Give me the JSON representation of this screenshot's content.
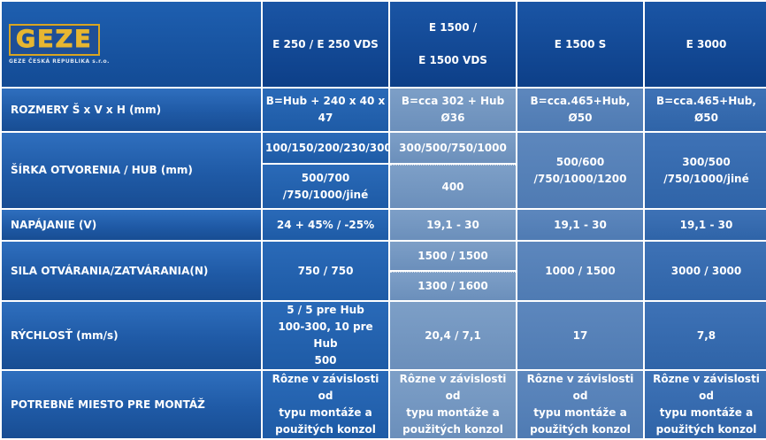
{
  "logo": {
    "brand": "GEZE",
    "subtitle": "GEZE ČESKÁ REPUBLIKA s.r.o."
  },
  "headers": {
    "col1": "E 250 / E 250 VDS",
    "col2_line1": "E 1500 /",
    "col2_line2": "E 1500 VDS",
    "col3": "E 1500 S",
    "col4": "E 3000"
  },
  "rows": {
    "rozmery": {
      "label": "ROZMERY Š x V x H (mm)",
      "c1": "B=Hub + 240 x 40 x 47",
      "c2": "B=cca 302 + Hub Ø36",
      "c3": "B=cca.465+Hub, Ø50",
      "c4": "B=cca.465+Hub, Ø50"
    },
    "sirka": {
      "label": "ŠÍRKA OTVORENIA / HUB (mm)",
      "c1_top": "100/150/200/230/300",
      "c1_bottom_line1": "500/700",
      "c1_bottom_line2": "/750/1000/jiné",
      "c2_top": "300/500/750/1000",
      "c2_bottom": "400",
      "c3_line1": "500/600",
      "c3_line2": "/750/1000/1200",
      "c4_line1": "300/500",
      "c4_line2": "/750/1000/jiné"
    },
    "napajanie": {
      "label": "NAPÁJANIE (V)",
      "c1": "24 + 45% / -25%",
      "c2": "19,1 - 30",
      "c3": "19,1 - 30",
      "c4": "19,1 - 30"
    },
    "sila": {
      "label": "SILA OTVÁRANIA/ZATVÁRANIA(N)",
      "c1": "750 / 750",
      "c2_top": "1500 / 1500",
      "c2_bottom": "1300 / 1600",
      "c3": "1000 / 1500",
      "c4": "3000 / 3000"
    },
    "rychlost": {
      "label": "RÝCHLOSŤ (mm/s)",
      "c1_line1": "5 / 5 pre Hub",
      "c1_line2": "100-300, 10 pre Hub",
      "c1_line3": "500",
      "c2": "20,4 / 7,1",
      "c3": "17",
      "c4": "7,8"
    },
    "miesto": {
      "label": "POTREBNÉ MIESTO PRE MONTÁŽ",
      "cell_line1": "Rôzne v závislosti od",
      "cell_line2": "typu montáže a",
      "cell_line3": "použitých konzol"
    }
  }
}
